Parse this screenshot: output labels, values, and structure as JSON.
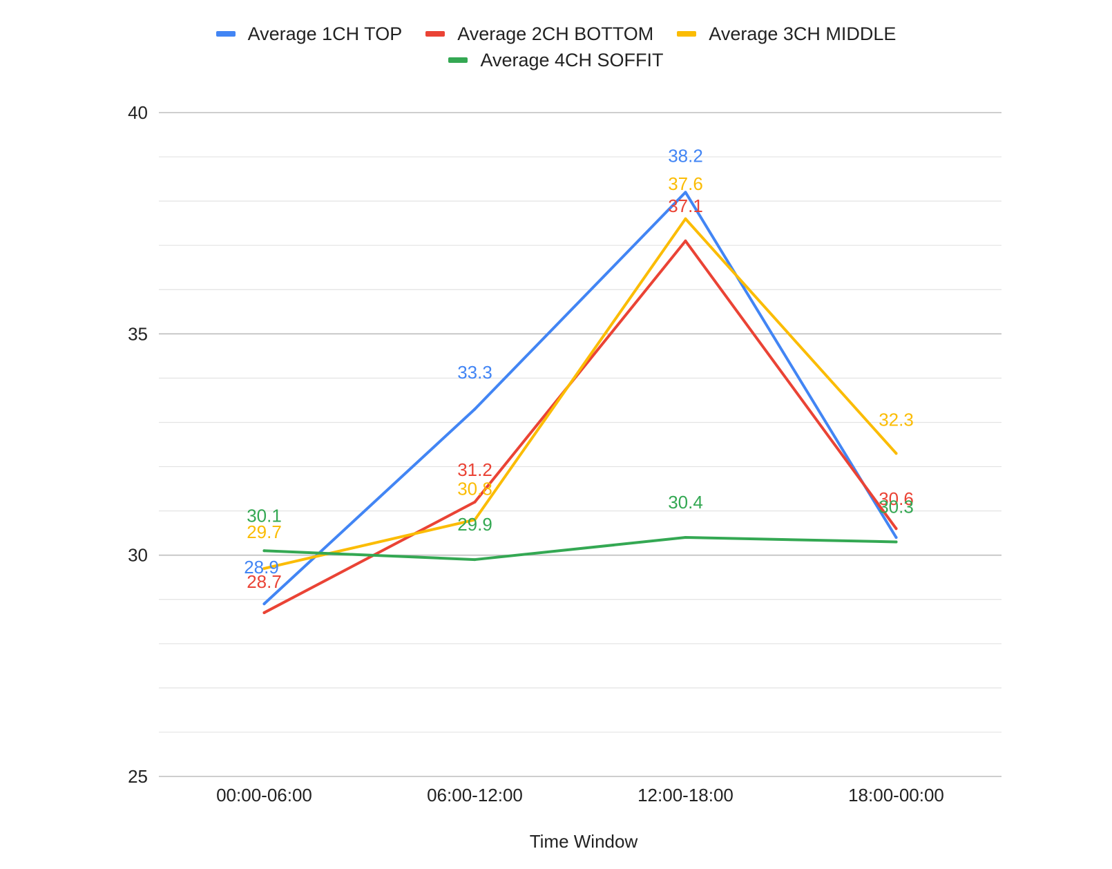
{
  "chart_data": {
    "type": "line",
    "title": "",
    "xlabel": "Time Window",
    "ylabel": "",
    "ylim": [
      25,
      40
    ],
    "yticks": [
      25,
      30,
      35,
      40
    ],
    "grid": true,
    "legend_position": "top",
    "categories": [
      "00:00-06:00",
      "06:00-12:00",
      "12:00-18:00",
      "18:00-00:00"
    ],
    "series": [
      {
        "name": "Average 1CH TOP",
        "color": "#4285F4",
        "values": [
          28.9,
          33.3,
          38.2,
          30.4
        ],
        "labels": [
          "28.9",
          "33.3",
          "38.2",
          ""
        ]
      },
      {
        "name": "Average 2CH BOTTOM",
        "color": "#EA4335",
        "values": [
          28.7,
          31.2,
          37.1,
          30.6
        ],
        "labels": [
          "28.7",
          "31.2",
          "37.1",
          "30.6"
        ]
      },
      {
        "name": "Average 3CH MIDDLE",
        "color": "#FBBC04",
        "values": [
          29.7,
          30.8,
          37.6,
          32.3
        ],
        "labels": [
          "29.7",
          "30.8",
          "37.6",
          "32.3"
        ]
      },
      {
        "name": "Average 4CH SOFFIT",
        "color": "#34A853",
        "values": [
          30.1,
          29.9,
          30.4,
          30.3
        ],
        "labels": [
          "30.1",
          "29.9",
          "30.4",
          "30.3"
        ]
      }
    ]
  }
}
